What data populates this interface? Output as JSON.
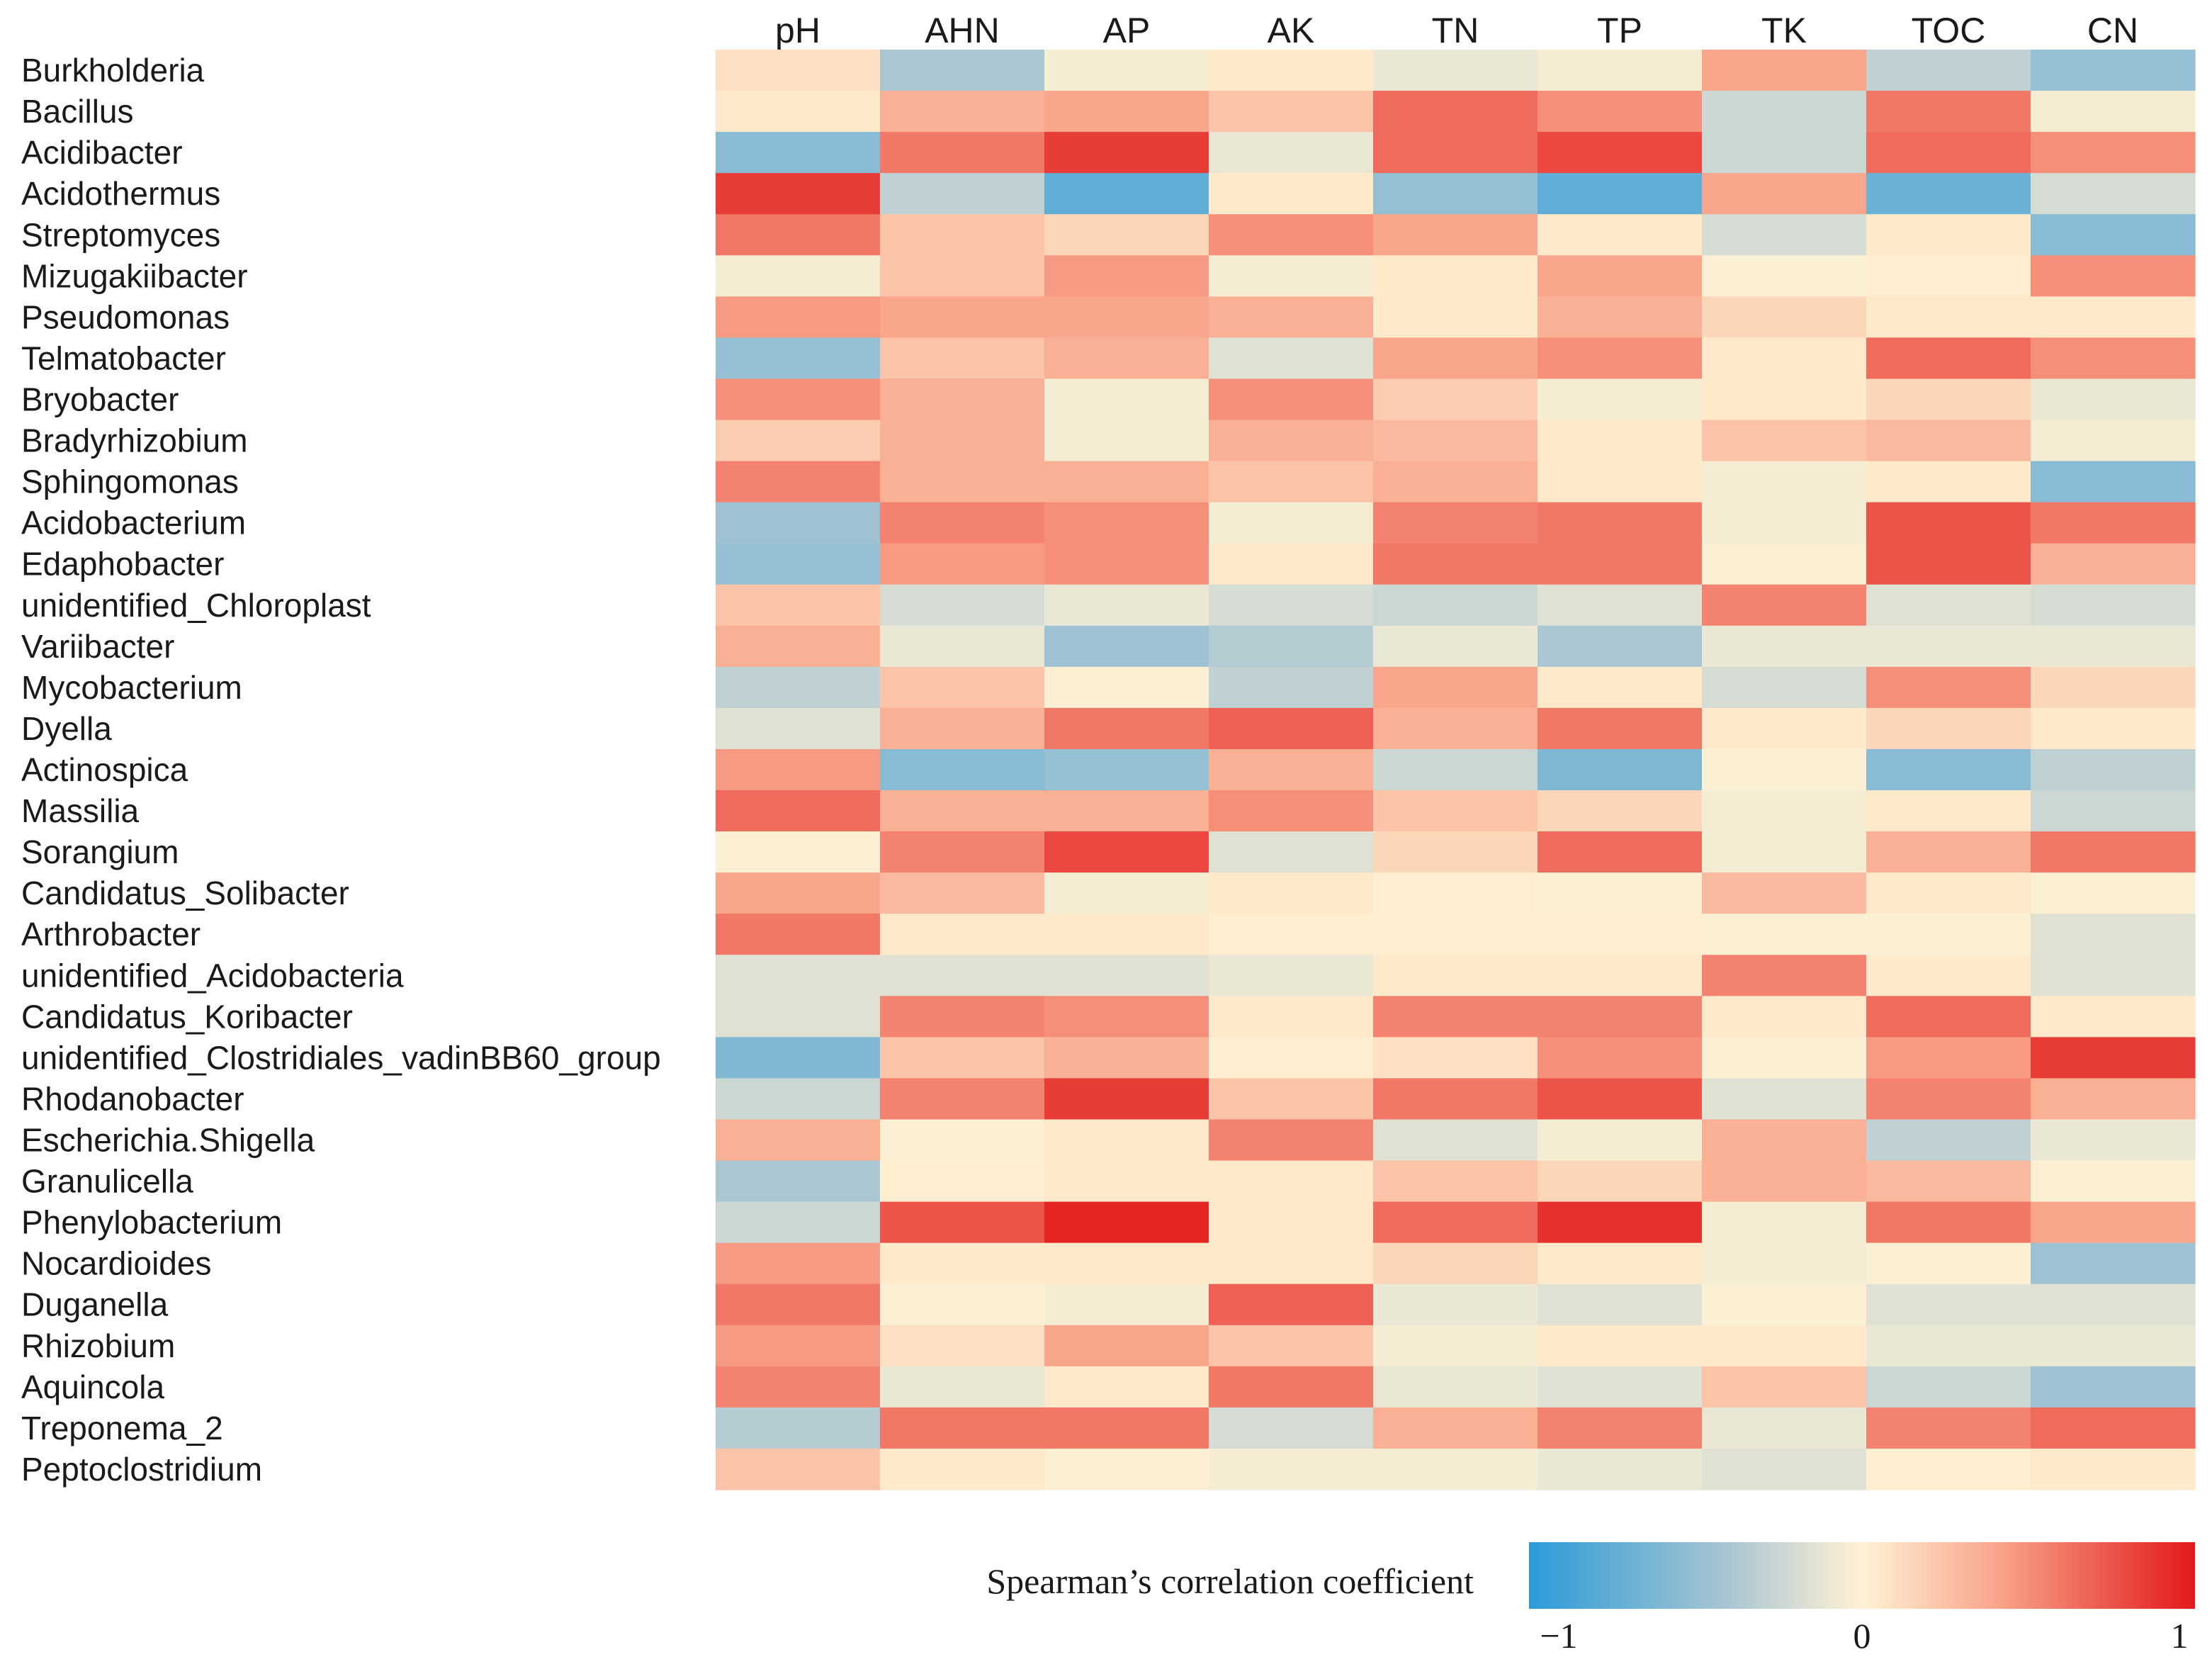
{
  "chart_data": {
    "type": "heatmap",
    "columns": [
      "pH",
      "AHN",
      "AP",
      "AK",
      "TN",
      "TP",
      "TK",
      "TOC",
      "CN"
    ],
    "rows": [
      "Burkholderia",
      "Bacillus",
      "Acidibacter",
      "Acidothermus",
      "Streptomyces",
      "Mizugakiibacter",
      "Pseudomonas",
      "Telmatobacter",
      "Bryobacter",
      "Bradyrhizobium",
      "Sphingomonas",
      "Acidobacterium",
      "Edaphobacter",
      "unidentified_Chloroplast",
      "Variibacter",
      "Mycobacterium",
      "Dyella",
      "Actinospica",
      "Massilia",
      "Sorangium",
      "Candidatus_Solibacter",
      "Arthrobacter",
      "unidentified_Acidobacteria",
      "Candidatus_Koribacter",
      "unidentified_Clostridiales_vadinBB60_group",
      "Rhodanobacter",
      "Escherichia.Shigella",
      "Granulicella",
      "Phenylobacterium",
      "Nocardioides",
      "Duganella",
      "Rhizobium",
      "Aquincola",
      "Treponema_2",
      "Peptoclostridium"
    ],
    "values": [
      [
        0.1,
        -0.4,
        -0.05,
        0.05,
        -0.1,
        -0.05,
        0.4,
        -0.3,
        -0.5
      ],
      [
        0.05,
        0.35,
        0.4,
        0.25,
        0.65,
        0.5,
        -0.25,
        0.6,
        -0.05
      ],
      [
        -0.55,
        0.6,
        0.85,
        -0.1,
        0.65,
        0.8,
        -0.25,
        0.65,
        0.5
      ],
      [
        0.85,
        -0.3,
        -0.75,
        0.05,
        -0.5,
        -0.75,
        0.4,
        -0.7,
        -0.2
      ],
      [
        0.6,
        0.25,
        0.15,
        0.5,
        0.4,
        0.05,
        -0.2,
        0.05,
        -0.55
      ],
      [
        -0.05,
        0.25,
        0.45,
        -0.05,
        0.05,
        0.4,
        -0.02,
        0.02,
        0.5
      ],
      [
        0.45,
        0.4,
        0.4,
        0.35,
        0.05,
        0.35,
        0.15,
        0.05,
        0.05
      ],
      [
        -0.5,
        0.25,
        0.35,
        -0.15,
        0.4,
        0.5,
        0.05,
        0.65,
        0.5
      ],
      [
        0.5,
        0.35,
        -0.05,
        0.5,
        0.2,
        -0.05,
        0.05,
        0.15,
        -0.1
      ],
      [
        0.2,
        0.35,
        -0.05,
        0.35,
        0.3,
        0.05,
        0.25,
        0.3,
        -0.05
      ],
      [
        0.55,
        0.35,
        0.35,
        0.25,
        0.35,
        0.05,
        -0.05,
        0.05,
        -0.55
      ],
      [
        -0.45,
        0.55,
        0.5,
        -0.05,
        0.55,
        0.6,
        -0.05,
        0.75,
        0.6
      ],
      [
        -0.5,
        0.45,
        0.5,
        0.05,
        0.6,
        0.6,
        -0.02,
        0.75,
        0.35
      ],
      [
        0.25,
        -0.2,
        -0.1,
        -0.2,
        -0.25,
        -0.15,
        0.55,
        -0.15,
        -0.2
      ],
      [
        0.35,
        -0.1,
        -0.45,
        -0.35,
        -0.1,
        -0.4,
        -0.1,
        -0.1,
        -0.1
      ],
      [
        -0.3,
        0.25,
        -0.02,
        -0.3,
        0.4,
        0.05,
        -0.2,
        0.5,
        0.15
      ],
      [
        -0.15,
        0.35,
        0.6,
        0.7,
        0.35,
        0.6,
        0.05,
        0.15,
        0.05
      ],
      [
        0.45,
        -0.55,
        -0.5,
        0.35,
        -0.25,
        -0.6,
        -0.02,
        -0.55,
        -0.3
      ],
      [
        0.65,
        0.35,
        0.35,
        0.5,
        0.25,
        0.15,
        -0.05,
        0.05,
        -0.25
      ],
      [
        -0.02,
        0.55,
        0.8,
        -0.15,
        0.15,
        0.65,
        -0.05,
        0.35,
        0.6
      ],
      [
        0.4,
        0.3,
        -0.05,
        0.05,
        0.02,
        -0.02,
        0.3,
        0.05,
        -0.02
      ],
      [
        0.6,
        0.05,
        0.05,
        0.02,
        0.02,
        0.02,
        -0.02,
        -0.02,
        -0.15
      ],
      [
        -0.15,
        -0.15,
        -0.15,
        -0.1,
        0.05,
        0.05,
        0.55,
        0.05,
        -0.15
      ],
      [
        -0.15,
        0.55,
        0.5,
        0.05,
        0.55,
        0.55,
        0.05,
        0.65,
        0.05
      ],
      [
        -0.6,
        0.25,
        0.35,
        0.02,
        0.1,
        0.5,
        -0.02,
        0.45,
        0.85
      ],
      [
        -0.25,
        0.55,
        0.85,
        0.25,
        0.6,
        0.75,
        -0.15,
        0.55,
        0.35
      ],
      [
        0.35,
        -0.02,
        0.05,
        0.55,
        -0.15,
        -0.05,
        0.35,
        -0.3,
        -0.1
      ],
      [
        -0.4,
        0.02,
        0.05,
        0.05,
        0.25,
        0.15,
        0.35,
        0.3,
        -0.02
      ],
      [
        -0.25,
        0.75,
        0.95,
        0.05,
        0.65,
        0.9,
        -0.05,
        0.6,
        0.4
      ],
      [
        0.45,
        0.05,
        0.05,
        0.05,
        0.15,
        0.05,
        -0.05,
        -0.02,
        -0.45
      ],
      [
        0.6,
        -0.02,
        -0.05,
        0.7,
        -0.1,
        -0.15,
        -0.02,
        -0.15,
        -0.15
      ],
      [
        0.45,
        0.1,
        0.4,
        0.25,
        -0.05,
        0.05,
        0.05,
        -0.1,
        -0.1
      ],
      [
        0.55,
        -0.1,
        0.05,
        0.6,
        -0.1,
        -0.15,
        0.25,
        -0.25,
        -0.45
      ],
      [
        -0.35,
        0.6,
        0.6,
        -0.2,
        0.35,
        0.55,
        -0.1,
        0.55,
        0.65
      ],
      [
        0.25,
        0.05,
        -0.02,
        -0.05,
        -0.05,
        -0.1,
        -0.15,
        0.02,
        0.05
      ]
    ],
    "colorbar": {
      "title": "Spearman’s correlation coefficient",
      "min": -1,
      "max": 1,
      "ticks": [
        -1,
        0,
        1
      ],
      "tick_labels": [
        "−1",
        "0",
        "1"
      ],
      "colors": {
        "negative": "#2b9bd8",
        "neutral": "#fff2d4",
        "positive": "#e3191b"
      }
    }
  }
}
